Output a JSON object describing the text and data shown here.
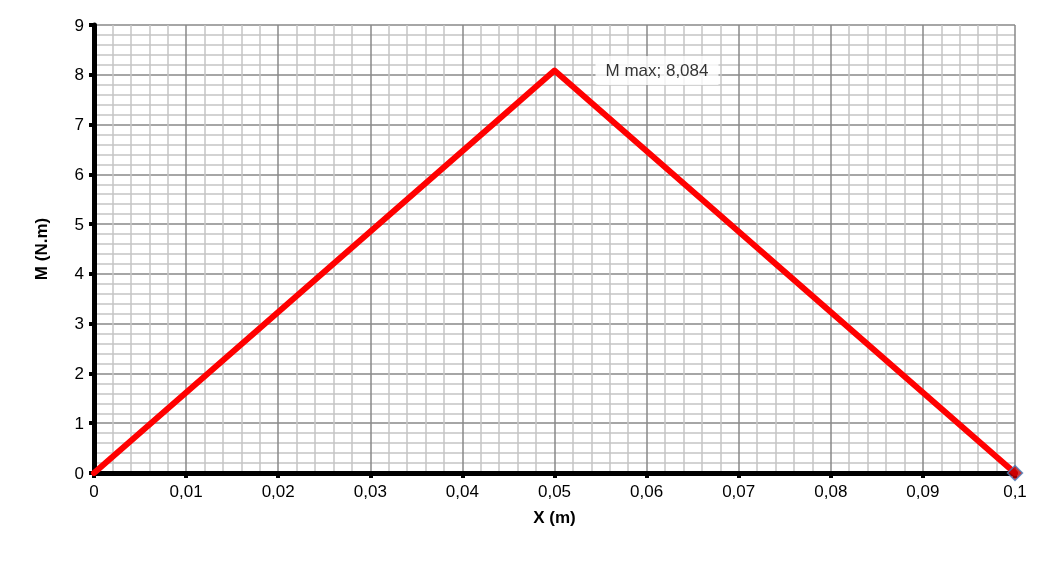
{
  "chart_data": {
    "type": "line",
    "xlabel": "X (m)",
    "ylabel": "M (N.m)",
    "xlim": [
      0,
      0.1
    ],
    "xticks": [
      0,
      {
        "value": 0.01,
        "label": "0,01"
      },
      {
        "value": 0.02,
        "label": "0,02"
      },
      {
        "value": 0.03,
        "label": "0,03"
      },
      {
        "value": 0.04,
        "label": "0,04"
      },
      {
        "value": 0.05,
        "label": "0,05"
      },
      {
        "value": 0.06,
        "label": "0,06"
      },
      {
        "value": 0.07,
        "label": "0,07"
      },
      {
        "value": 0.08,
        "label": "0,08"
      },
      {
        "value": 0.09,
        "label": "0,09"
      },
      {
        "value": 0.1,
        "label": "0,1"
      }
    ],
    "ylim": [
      0,
      9
    ],
    "yticks": [
      0,
      1,
      2,
      3,
      4,
      5,
      6,
      7,
      8,
      9
    ],
    "grid": true,
    "series": [
      {
        "color": "#ff0000",
        "x": [
          0,
          0.05,
          0.1
        ],
        "values": [
          0,
          8.084,
          0
        ],
        "marker": "none"
      },
      {
        "type": "scatter",
        "color": "#c00000",
        "x": [
          0.1
        ],
        "values": [
          0
        ],
        "marker": "diamond"
      }
    ],
    "annotations": [
      {
        "text": "M max; 8,084",
        "x": 0.05,
        "y": 8.084
      }
    ]
  }
}
